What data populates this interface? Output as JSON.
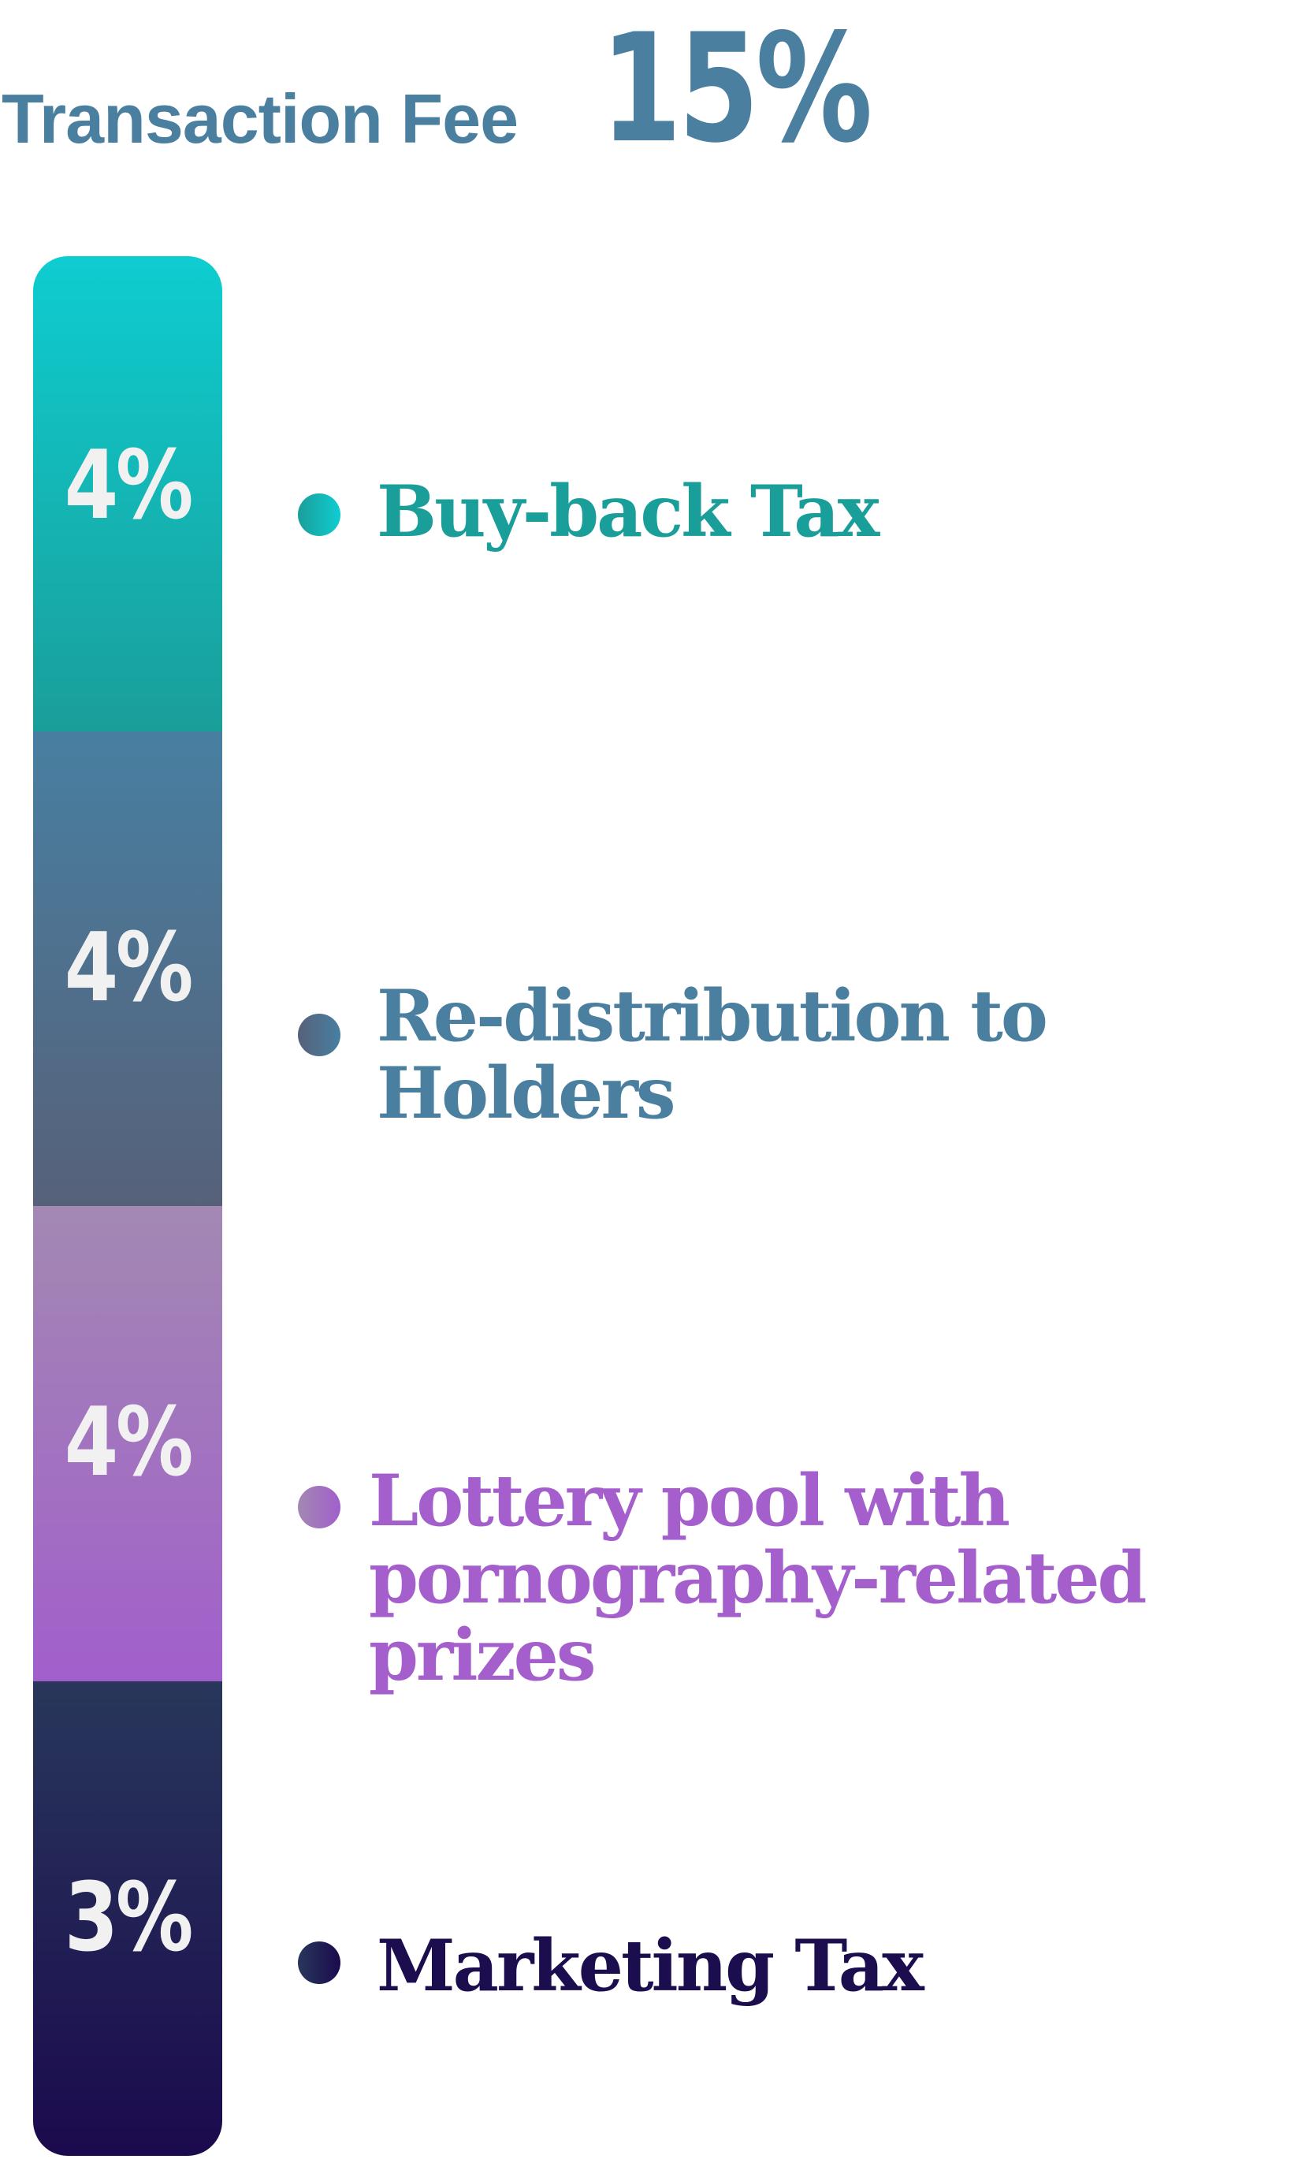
{
  "header": {
    "label": "Transaction Fee",
    "total": "15%"
  },
  "colors": {
    "header": "#4a7fa0",
    "buyback": "#1a9e9a",
    "redistribution": "#4a7fa0",
    "lottery": "#a45fcc",
    "marketing": "#1c0e4e"
  },
  "chart_data": {
    "type": "bar",
    "title": "Transaction Fee 15%",
    "unit": "%",
    "categories": [
      "Buy-back Tax",
      "Re-distribution to Holders",
      "Lottery pool with pornography-related prizes",
      "Marketing Tax"
    ],
    "values": [
      4,
      4,
      4,
      3
    ],
    "labels": [
      "4%",
      "4%",
      "4%",
      "3%"
    ],
    "segment_colors": [
      [
        "#0ecdd0",
        "#1a9e9a"
      ],
      [
        "#487fa1",
        "#566179"
      ],
      [
        "#a388b3",
        "#a15fcb"
      ],
      [
        "#28375b",
        "#1b0a4e"
      ]
    ],
    "legend": [
      {
        "label": "Buy-back Tax",
        "dot_colors": [
          "#1a9e9a",
          "#0ecdd0"
        ]
      },
      {
        "label": "Re-distribution to Holders",
        "dot_colors": [
          "#566179",
          "#487fa1"
        ]
      },
      {
        "label": "Lottery pool with\npornography-related prizes",
        "dot_colors": [
          "#a388b3",
          "#a15fcb"
        ]
      },
      {
        "label": "Marketing Tax",
        "dot_colors": [
          "#28375b",
          "#1b0a4e"
        ]
      }
    ]
  }
}
